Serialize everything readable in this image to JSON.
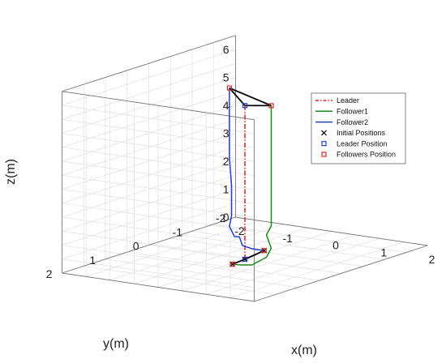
{
  "chart_data": {
    "type": "line",
    "projection": "3d",
    "title": "",
    "xlabel": "x(m)",
    "ylabel": "y(m)",
    "zlabel": "z(m)",
    "xlim": [
      -2,
      2
    ],
    "ylim": [
      -2,
      2
    ],
    "zlim": [
      0,
      6.5
    ],
    "x_ticks": [
      "-2",
      "-1",
      "0",
      "1",
      "2"
    ],
    "y_ticks": [
      "-2",
      "-1",
      "0",
      "1",
      "2"
    ],
    "z_ticks": [
      "0",
      "1",
      "2",
      "3",
      "4",
      "5",
      "6"
    ],
    "grid": true,
    "box": true,
    "legend_position": "right",
    "series": [
      {
        "name": "Leader",
        "color": "#d62728",
        "style": "dash-dot",
        "points": [
          [
            0,
            0,
            0
          ],
          [
            0,
            0,
            5.5
          ]
        ]
      },
      {
        "name": "Follower1",
        "color": "#1a8a1a",
        "style": "solid",
        "points": [
          [
            0.1,
            0.4,
            0.05
          ],
          [
            0.3,
            0.45,
            0.1
          ],
          [
            0.6,
            0.5,
            0.2
          ],
          [
            0.9,
            0.5,
            0.55
          ],
          [
            1.0,
            0.5,
            0.9
          ],
          [
            0.9,
            0.5,
            1.35
          ],
          [
            1.0,
            0.5,
            1.7
          ],
          [
            1.0,
            0.5,
            2.2
          ],
          [
            1.0,
            0.5,
            3.0
          ],
          [
            1.0,
            0.5,
            4.0
          ],
          [
            1.0,
            0.5,
            5.0
          ],
          [
            1.0,
            0.5,
            6.0
          ]
        ]
      },
      {
        "name": "Follower2",
        "color": "#1f3fd1",
        "style": "solid",
        "points": [
          [
            -0.05,
            -0.5,
            0.05
          ],
          [
            -0.3,
            -0.5,
            0.05
          ],
          [
            -0.55,
            -0.55,
            0.08
          ],
          [
            -0.7,
            -0.65,
            0.3
          ],
          [
            -0.85,
            -0.7,
            0.25
          ],
          [
            -1.0,
            -0.75,
            0.55
          ],
          [
            -1.0,
            -0.8,
            0.9
          ],
          [
            -1.0,
            -0.8,
            2.0
          ],
          [
            -1.0,
            -0.75,
            3.0
          ],
          [
            -1.0,
            -0.75,
            4.0
          ],
          [
            -1.0,
            -0.75,
            5.0
          ],
          [
            -1.0,
            -0.75,
            5.5
          ]
        ]
      }
    ],
    "markers": [
      {
        "name": "Initial Positions",
        "symbol": "x",
        "color": "#111111",
        "points": [
          [
            0,
            0,
            0
          ],
          [
            0.1,
            0.4,
            0.05
          ],
          [
            -0.05,
            -0.5,
            0.05
          ]
        ]
      },
      {
        "name": "Leader Position",
        "symbol": "square",
        "color": "#1f3fd1",
        "points": [
          [
            0,
            0,
            5.5
          ],
          [
            0,
            0,
            0
          ]
        ]
      },
      {
        "name": "Followers Position",
        "symbol": "square",
        "color": "#d62728",
        "points": [
          [
            1.0,
            0.5,
            6.0
          ],
          [
            -1.0,
            -0.75,
            5.5
          ],
          [
            0.1,
            0.4,
            0.05
          ],
          [
            -0.05,
            -0.5,
            0.05
          ]
        ]
      }
    ],
    "formation_edges": [
      [
        [
          0,
          0,
          5.5
        ],
        [
          1.0,
          0.5,
          6.0
        ]
      ],
      [
        [
          1.0,
          0.5,
          6.0
        ],
        [
          -1.0,
          -0.75,
          5.5
        ]
      ],
      [
        [
          -1.0,
          -0.75,
          5.5
        ],
        [
          0,
          0,
          5.5
        ]
      ],
      [
        [
          0,
          0,
          0
        ],
        [
          0.1,
          0.4,
          0.05
        ]
      ],
      [
        [
          0,
          0,
          0
        ],
        [
          -0.05,
          -0.5,
          0.05
        ]
      ]
    ]
  }
}
